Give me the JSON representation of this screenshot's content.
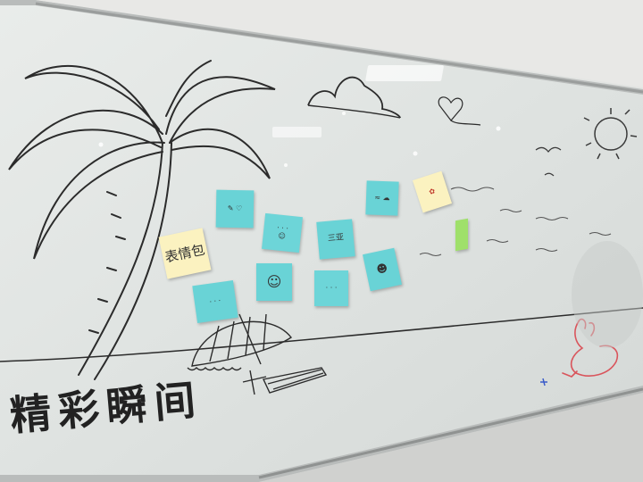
{
  "board": {
    "title": "精彩瞬间",
    "colors": {
      "note_blue": "#69d3d6",
      "note_yellow": "#fbf2c0",
      "note_green": "#9fe06a",
      "marker": "#2b2b2b",
      "rabbit": "#d9555c"
    }
  },
  "notes": [
    {
      "label": "表情包"
    },
    {
      "label": "三亚"
    }
  ]
}
